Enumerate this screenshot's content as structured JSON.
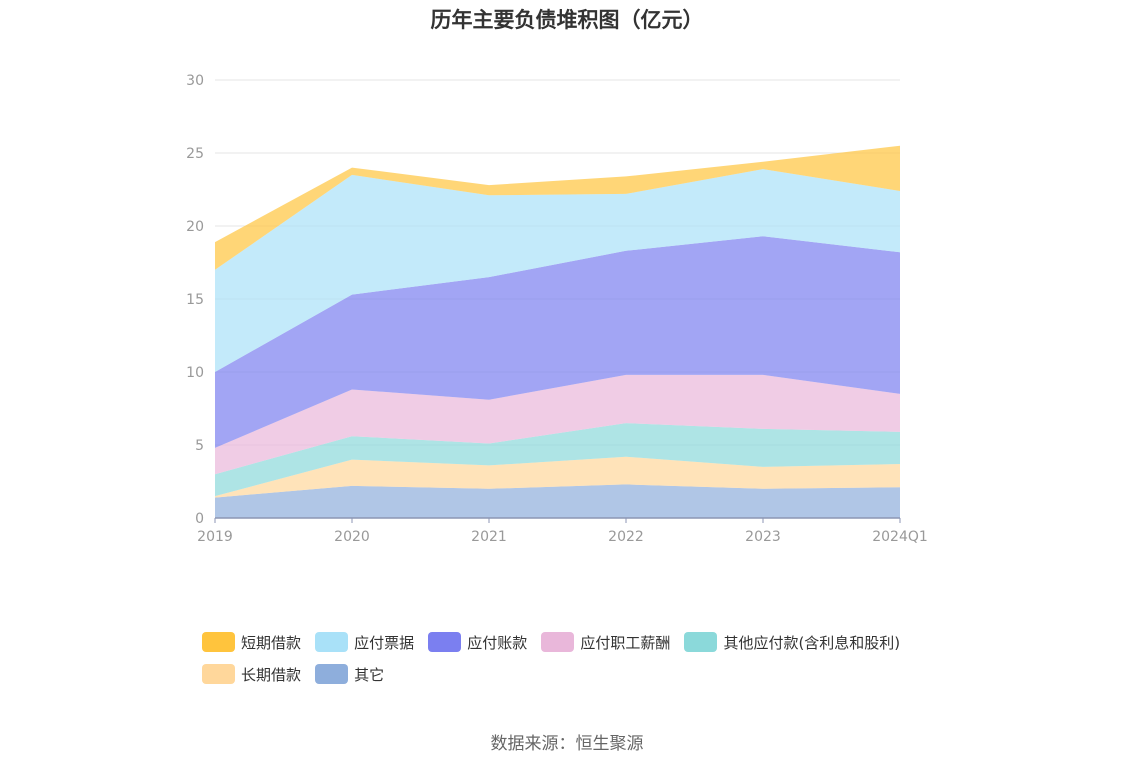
{
  "chart_data": {
    "type": "area",
    "stacked": true,
    "title": "历年主要负债堆积图（亿元）",
    "categories": [
      "2019",
      "2020",
      "2021",
      "2022",
      "2023",
      "2024Q1"
    ],
    "ylim": [
      0,
      30
    ],
    "yticks": [
      0,
      5,
      10,
      15,
      20,
      25,
      30
    ],
    "grid": true,
    "legend_position": "bottom",
    "series": [
      {
        "name": "其它",
        "color": "#8EAEDC",
        "values": [
          1.4,
          2.2,
          2.0,
          2.3,
          2.0,
          2.1
        ]
      },
      {
        "name": "长期借款",
        "color": "#FFD79B",
        "values": [
          0.1,
          1.8,
          1.6,
          1.9,
          1.5,
          1.6
        ]
      },
      {
        "name": "其他应付款(含利息和股利)",
        "color": "#8BD9DA",
        "values": [
          1.5,
          1.6,
          1.5,
          2.3,
          2.6,
          2.2
        ]
      },
      {
        "name": "应付职工薪酬",
        "color": "#E9B7DA",
        "values": [
          1.8,
          3.2,
          3.0,
          3.3,
          3.7,
          2.6
        ]
      },
      {
        "name": "应付账款",
        "color": "#7B7FF0",
        "values": [
          5.2,
          6.5,
          8.4,
          8.5,
          9.5,
          9.7
        ]
      },
      {
        "name": "应付票据",
        "color": "#A9E1F8",
        "values": [
          7.0,
          8.2,
          5.6,
          3.9,
          4.6,
          4.2
        ]
      },
      {
        "name": "短期借款",
        "color": "#FFC43D",
        "values": [
          1.9,
          0.5,
          0.7,
          1.2,
          0.5,
          3.1
        ]
      }
    ]
  },
  "legend": {
    "items": [
      {
        "label": "短期借款",
        "color": "#FFC43D"
      },
      {
        "label": "应付票据",
        "color": "#A9E1F8"
      },
      {
        "label": "应付账款",
        "color": "#7B7FF0"
      },
      {
        "label": "应付职工薪酬",
        "color": "#E9B7DA"
      },
      {
        "label": "其他应付款(含利息和股利)",
        "color": "#8BD9DA"
      },
      {
        "label": "长期借款",
        "color": "#FFD79B"
      },
      {
        "label": "其它",
        "color": "#8EAEDC"
      }
    ]
  },
  "source": "数据来源：恒生聚源"
}
